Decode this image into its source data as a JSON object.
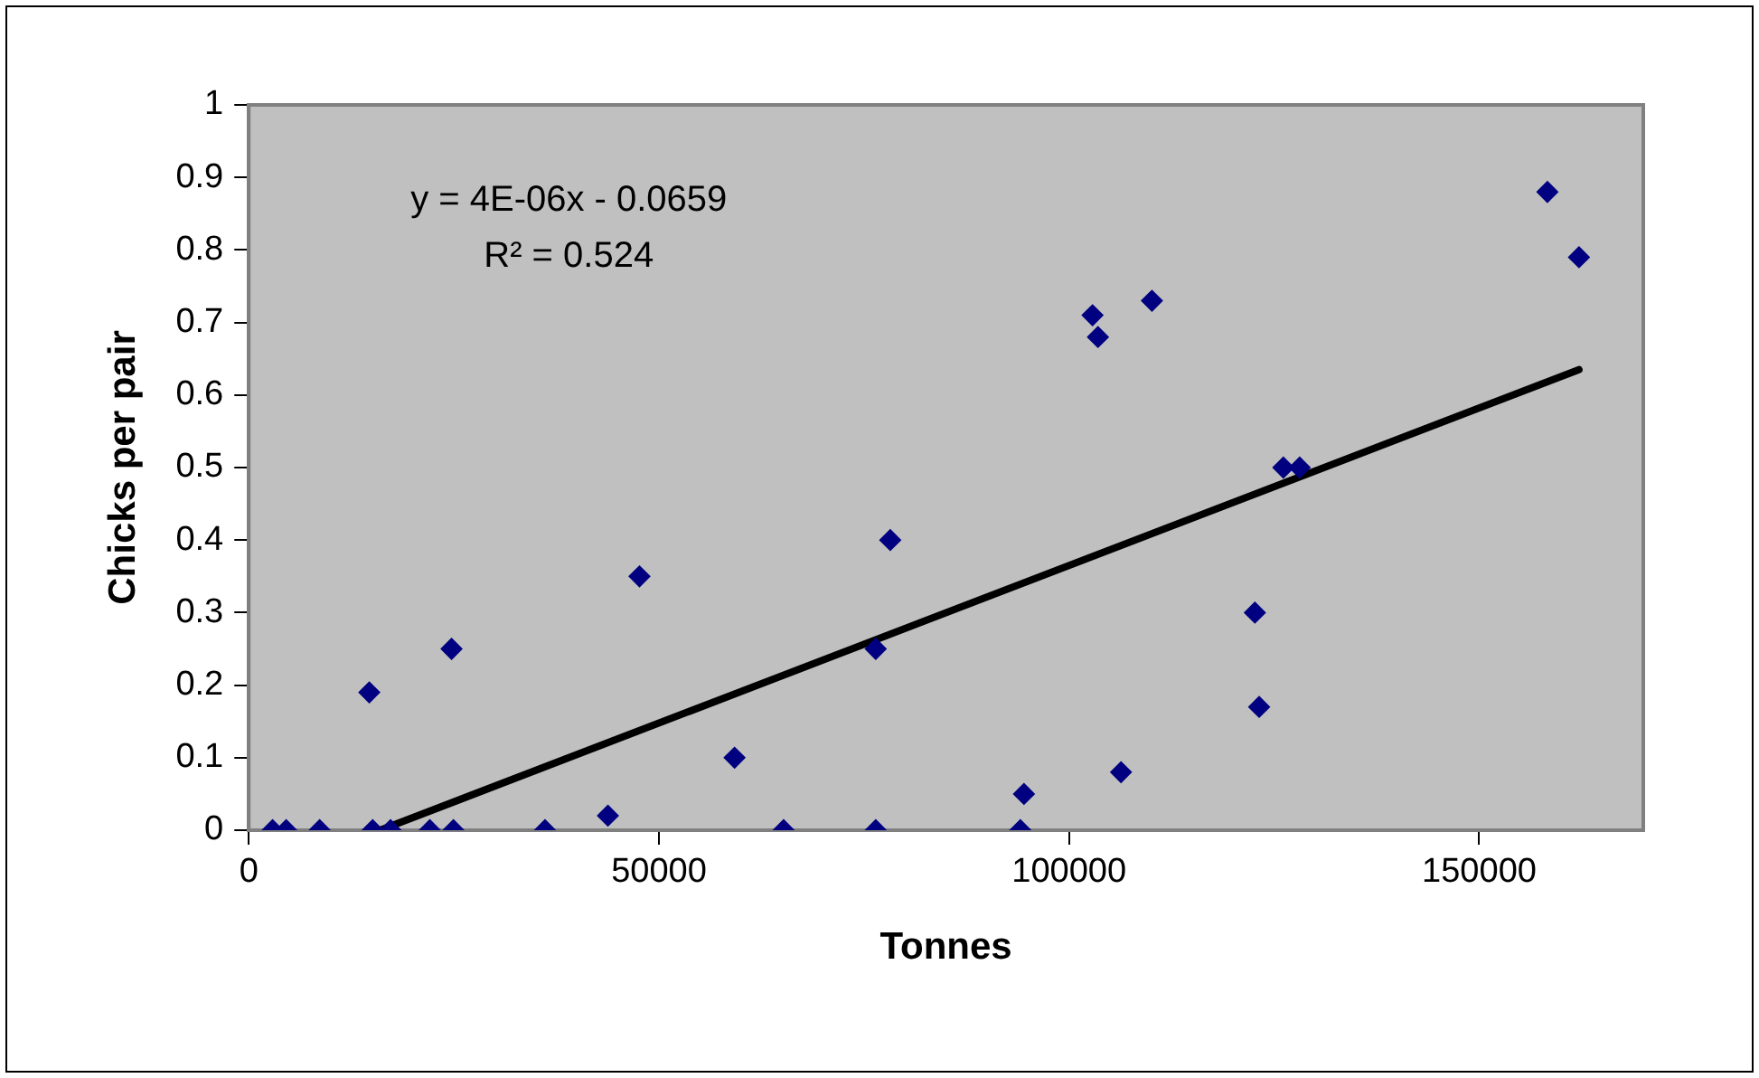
{
  "chart_data": {
    "type": "scatter",
    "xlabel": "Tonnes",
    "ylabel": "Chicks per pair",
    "xlim": [
      0,
      170000
    ],
    "xticks": [
      0,
      50000,
      100000,
      150000
    ],
    "ylim": [
      0,
      1
    ],
    "yticks": [
      0,
      0.1,
      0.2,
      0.3,
      0.4,
      0.5,
      0.6,
      0.7,
      0.8,
      0.9,
      1
    ],
    "legend": false,
    "marker": "diamond",
    "annotations": [
      "y = 4E-06x - 0.0659",
      "R² = 0.524"
    ],
    "series": [
      {
        "type": "scatter",
        "color": "#000080",
        "x": [
          2900,
          4560,
          8640,
          14690,
          15100,
          17280,
          22070,
          24720,
          24950,
          36110,
          43780,
          47630,
          59220,
          65200,
          76430,
          76430,
          78200,
          94060,
          94500,
          102860,
          103520,
          106330,
          110100,
          122650,
          123170,
          126120,
          128110,
          158310,
          162160
        ],
        "values": [
          0,
          0,
          0,
          0.19,
          0,
          0,
          0,
          0.25,
          0,
          0,
          0.02,
          0.35,
          0.1,
          0,
          0.25,
          0,
          0.4,
          0,
          0.05,
          0.71,
          0.68,
          0.08,
          0.73,
          0.3,
          0.17,
          0.5,
          0.5,
          0.88,
          0.79
        ]
      },
      {
        "type": "line",
        "color": "#000000",
        "marker": "none",
        "line_style": "solid",
        "x": [
          16000,
          162160
        ],
        "values": [
          0,
          0.635
        ]
      }
    ]
  }
}
